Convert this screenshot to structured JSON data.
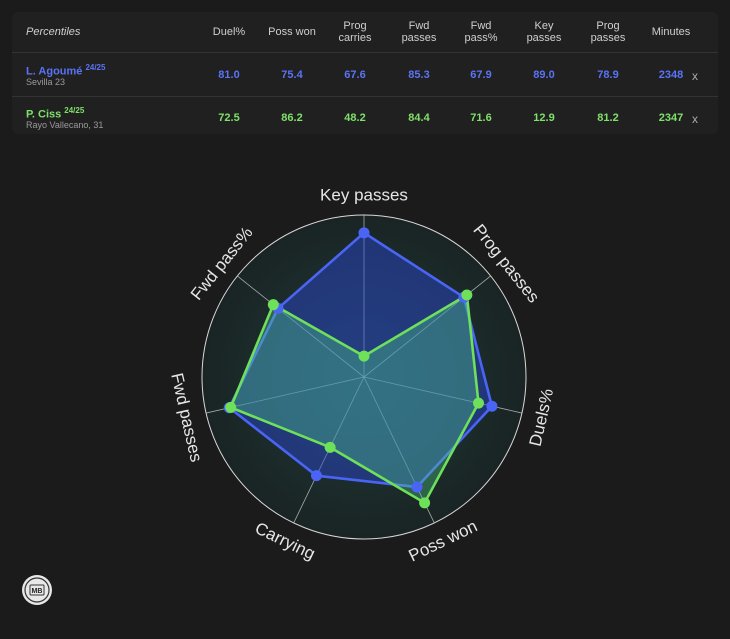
{
  "table": {
    "label": "Percentiles",
    "columns": [
      "Duel%",
      "Poss won",
      "Prog\ncarries",
      "Fwd\npasses",
      "Fwd\npass%",
      "Key\npasses",
      "Prog\npasses",
      "Minutes"
    ],
    "remove_label": "x",
    "players": [
      {
        "name": "L. Agoumé",
        "season": "24/25",
        "team": "Sevilla 23",
        "values": [
          "81.0",
          "75.4",
          "67.6",
          "85.3",
          "67.9",
          "89.0",
          "78.9",
          "2348"
        ],
        "color": "#4a65f5"
      },
      {
        "name": "P. Ciss",
        "season": "24/25",
        "team": "Rayo Vallecano, 31",
        "values": [
          "72.5",
          "86.2",
          "48.2",
          "84.4",
          "71.6",
          "12.9",
          "81.2",
          "2347"
        ],
        "color": "#6ee05a"
      }
    ]
  },
  "chart_data": {
    "type": "radar",
    "axes": [
      "Key passes",
      "Prog passes",
      "Duels%",
      "Poss won",
      "Carrying",
      "Fwd passes",
      "Fwd pass%"
    ],
    "rlim": [
      0,
      100
    ],
    "series": [
      {
        "name": "L. Agoumé",
        "color": "#4a65f5",
        "values": [
          89.0,
          78.9,
          81.0,
          75.4,
          67.6,
          85.3,
          67.9
        ]
      },
      {
        "name": "P. Ciss",
        "color": "#6ee05a",
        "values": [
          12.9,
          81.2,
          72.5,
          86.2,
          48.2,
          84.4,
          71.6
        ]
      }
    ]
  },
  "logo": {
    "text": "MB"
  }
}
